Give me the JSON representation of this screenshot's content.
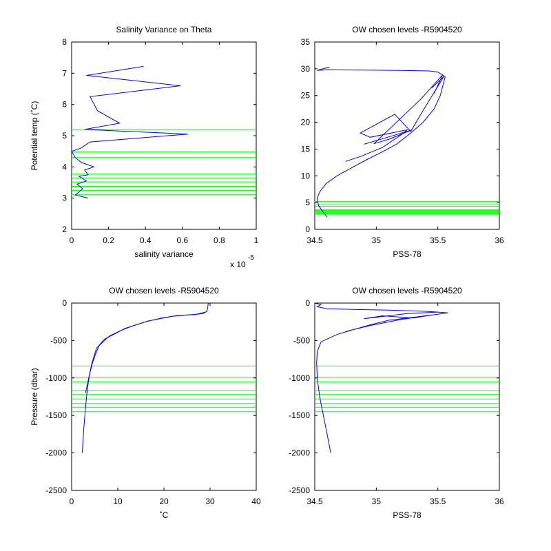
{
  "colors": {
    "profile": "#0000ff",
    "levels": "#00ff00",
    "axes": "#000000",
    "background": "#ffffff"
  },
  "chart_data": [
    {
      "type": "line",
      "title": "Salinity Variance on Theta",
      "xlabel": "salinity variance",
      "ylabel": "Potential temp (˚C)",
      "x_exponent": "x 10",
      "x_exponent_power": "-5",
      "xlim": [
        0,
        1
      ],
      "ylim": [
        2,
        8
      ],
      "xticks": [
        0,
        0.2,
        0.4,
        0.6,
        0.8,
        1
      ],
      "xtick_labels": [
        "0",
        "0.2",
        "0.4",
        "0.6",
        "0.8",
        "1"
      ],
      "yticks": [
        2,
        3,
        4,
        5,
        6,
        7,
        8
      ],
      "ytick_labels": [
        "2",
        "3",
        "4",
        "5",
        "6",
        "7",
        "8"
      ],
      "grid": false,
      "series": [
        {
          "x": [
            0.09,
            0.02,
            0.06,
            0.03,
            0.08,
            0.04,
            0.09,
            0.07,
            0.12,
            0.05,
            0.02,
            0.0,
            0.05,
            0.1,
            0.63,
            0.07,
            0.26,
            0.14,
            0.1,
            0.59,
            0.08,
            0.39
          ],
          "y": [
            3.0,
            3.1,
            3.3,
            3.45,
            3.55,
            3.7,
            3.75,
            3.9,
            4.0,
            4.15,
            4.3,
            4.5,
            4.6,
            4.8,
            5.05,
            5.2,
            5.4,
            5.8,
            6.25,
            6.6,
            6.93,
            7.22
          ]
        }
      ],
      "level_lines": [
        3.12,
        3.25,
        3.38,
        3.52,
        3.65,
        3.77,
        4.3,
        4.48,
        5.2
      ]
    },
    {
      "type": "line",
      "title": "OW chosen levels -R5904520",
      "xlabel": "PSS-78",
      "ylabel": "",
      "xlim": [
        34.5,
        36
      ],
      "ylim": [
        0,
        35
      ],
      "xticks": [
        34.5,
        35,
        35.5,
        36
      ],
      "xtick_labels": [
        "34.5",
        "35",
        "35.5",
        "36"
      ],
      "yticks": [
        0,
        5,
        10,
        15,
        20,
        25,
        30,
        35
      ],
      "ytick_labels": [
        "0",
        "5",
        "10",
        "15",
        "20",
        "25",
        "30",
        "35"
      ],
      "grid": false,
      "series": [
        {
          "x": [
            34.6,
            34.56,
            34.53,
            34.52,
            34.54,
            34.59,
            34.68,
            34.8,
            34.92,
            35.05,
            35.17,
            35.28,
            35.38,
            35.47,
            35.52,
            35.56,
            35.5,
            35.43,
            35.2,
            34.9,
            34.6,
            34.52,
            34.55,
            34.62
          ],
          "y": [
            2.3,
            3.5,
            4.5,
            5.8,
            7.0,
            8.5,
            10.0,
            11.5,
            13.0,
            14.5,
            16.0,
            18.0,
            20.0,
            22.5,
            25.0,
            28.5,
            29.4,
            29.6,
            29.7,
            29.75,
            29.8,
            29.7,
            29.9,
            30.3
          ]
        },
        {
          "x": [
            34.75,
            34.87,
            35.05,
            35.21,
            35.25,
            34.95,
            34.87,
            35.15,
            35.28,
            35.38,
            35.55,
            35.45
          ],
          "y": [
            12.7,
            13.6,
            15.3,
            17.8,
            18.6,
            17.2,
            18.0,
            21.5,
            18.3,
            22.2,
            28.6,
            26.4
          ]
        },
        {
          "x": [
            34.9,
            35.15,
            35.29,
            35.1,
            34.98,
            35.36,
            35.54,
            35.47
          ],
          "y": [
            15.9,
            17.6,
            18.6,
            16.8,
            16.0,
            24.3,
            28.9,
            25.4
          ]
        }
      ],
      "level_lines": [
        2.9,
        3.1,
        3.25,
        3.4,
        3.55,
        3.7,
        4.3,
        4.6,
        5.2
      ]
    },
    {
      "type": "line",
      "title": "OW chosen levels -R5904520",
      "xlabel": "˚C",
      "ylabel": "Pressure (dbar)",
      "xlim": [
        0,
        40
      ],
      "ylim": [
        -2500,
        0
      ],
      "xticks": [
        0,
        10,
        20,
        30,
        40
      ],
      "xtick_labels": [
        "0",
        "10",
        "20",
        "30",
        "40"
      ],
      "yticks": [
        -2500,
        -2000,
        -1500,
        -1000,
        -500,
        0
      ],
      "ytick_labels": [
        "-2500",
        "-2000",
        "-1500",
        "-1000",
        "-500",
        "0"
      ],
      "grid": false,
      "series": [
        {
          "x": [
            2.3,
            2.6,
            3.0,
            3.4,
            3.9,
            4.5,
            5.2,
            6.0,
            7.0,
            8.5,
            10.5,
            13.0,
            16.0,
            19.5,
            23.0,
            26.5,
            28.5,
            29.3,
            29.5,
            29.6
          ],
          "y": [
            -2000,
            -1700,
            -1400,
            -1150,
            -950,
            -800,
            -680,
            -560,
            -490,
            -430,
            -370,
            -310,
            -250,
            -200,
            -165,
            -155,
            -140,
            -110,
            -60,
            0
          ]
        },
        {
          "x": [
            3.0,
            4.4,
            5.4,
            7.8,
            11.5,
            16.5,
            22.0,
            27.0,
            29.0
          ],
          "y": [
            -1200,
            -800,
            -600,
            -460,
            -340,
            -240,
            -175,
            -150,
            -120
          ]
        }
      ],
      "level_lines": [
        -840,
        -990,
        -1050,
        -1170,
        -1220,
        -1280,
        -1340,
        -1390,
        -1450
      ]
    },
    {
      "type": "line",
      "title": "OW chosen levels -R5904520",
      "xlabel": "PSS-78",
      "ylabel": "",
      "xlim": [
        34.5,
        36
      ],
      "ylim": [
        -2500,
        0
      ],
      "xticks": [
        34.5,
        35,
        35.5,
        36
      ],
      "xtick_labels": [
        "34.5",
        "35",
        "35.5",
        "36"
      ],
      "yticks": [
        -2500,
        -2000,
        -1500,
        -1000,
        -500,
        0
      ],
      "ytick_labels": [
        "-2500",
        "-2000",
        "-1500",
        "-1000",
        "-500",
        "0"
      ],
      "grid": false,
      "series": [
        {
          "x": [
            34.63,
            34.6,
            34.57,
            34.54,
            34.52,
            34.515,
            34.52,
            34.55,
            34.6,
            34.68,
            34.8,
            34.95,
            35.1,
            35.3,
            35.5,
            35.58,
            35.4,
            35.1,
            34.8,
            34.6,
            34.52,
            34.55,
            34.5
          ],
          "y": [
            -2000,
            -1750,
            -1500,
            -1250,
            -1000,
            -800,
            -650,
            -520,
            -480,
            -420,
            -360,
            -290,
            -230,
            -190,
            -150,
            -130,
            -110,
            -95,
            -85,
            -75,
            -50,
            -20,
            0
          ]
        },
        {
          "x": [
            34.75,
            34.95,
            35.2,
            35.45,
            35.3,
            35.05,
            34.9,
            35.25,
            35.5
          ],
          "y": [
            -380,
            -300,
            -220,
            -160,
            -200,
            -170,
            -210,
            -140,
            -120
          ]
        }
      ],
      "level_lines": [
        -840,
        -990,
        -1050,
        -1170,
        -1220,
        -1280,
        -1340,
        -1390,
        -1450
      ]
    }
  ]
}
